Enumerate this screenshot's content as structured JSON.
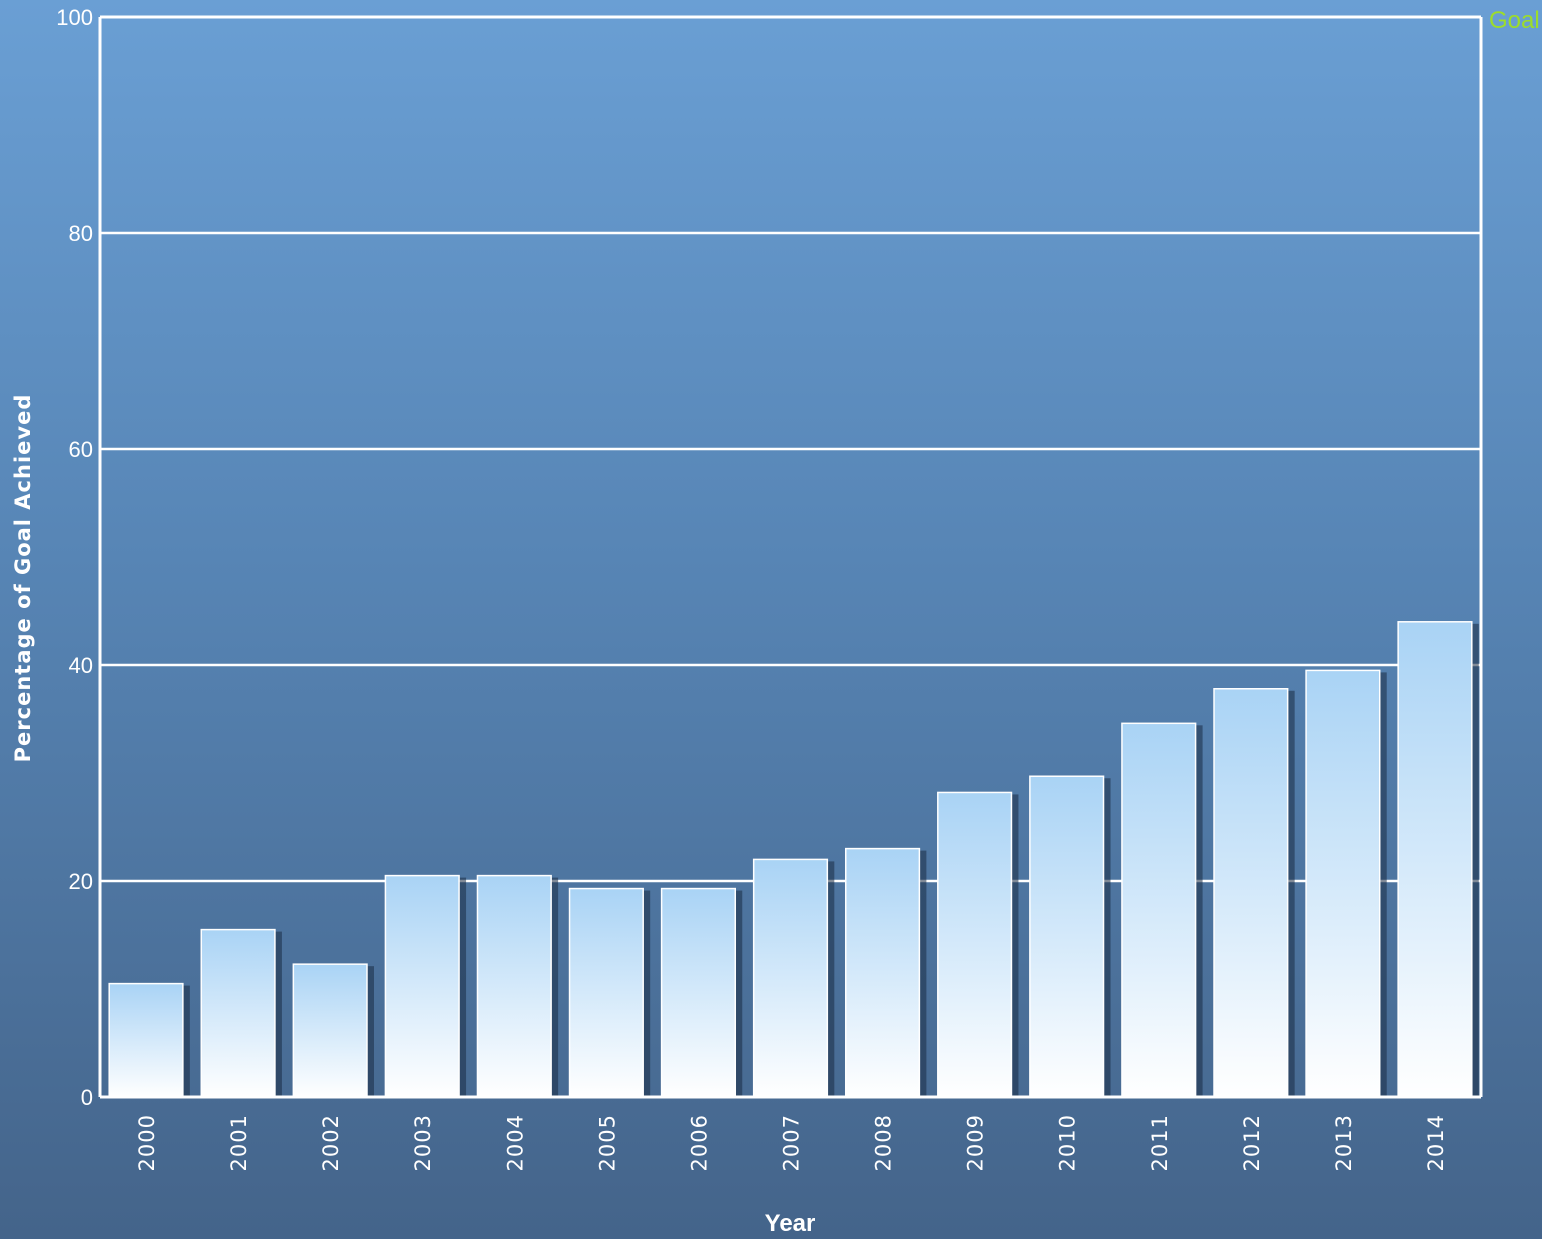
{
  "chart_data": {
    "type": "bar",
    "title": "",
    "xlabel": "Year",
    "ylabel": "Percentage of Goal Achieved",
    "categories": [
      "2000",
      "2001",
      "2002",
      "2003",
      "2004",
      "2005",
      "2006",
      "2007",
      "2008",
      "2009",
      "2010",
      "2011",
      "2012",
      "2013",
      "2014"
    ],
    "values": [
      10.5,
      15.5,
      12.3,
      20.5,
      20.5,
      19.3,
      19.3,
      22.0,
      23.0,
      28.2,
      29.7,
      34.6,
      37.8,
      39.5,
      44.0
    ],
    "ylim": [
      0,
      100
    ],
    "yticks": [
      "0",
      "20",
      "40",
      "60",
      "80",
      "100"
    ],
    "grid": true,
    "goal": {
      "label": "Goal",
      "value": 100,
      "color": "#9ddd2a"
    },
    "colors": {
      "bar_top": "#a9d3f5",
      "bar_bottom": "#ffffff",
      "grid": "#ffffff"
    }
  }
}
